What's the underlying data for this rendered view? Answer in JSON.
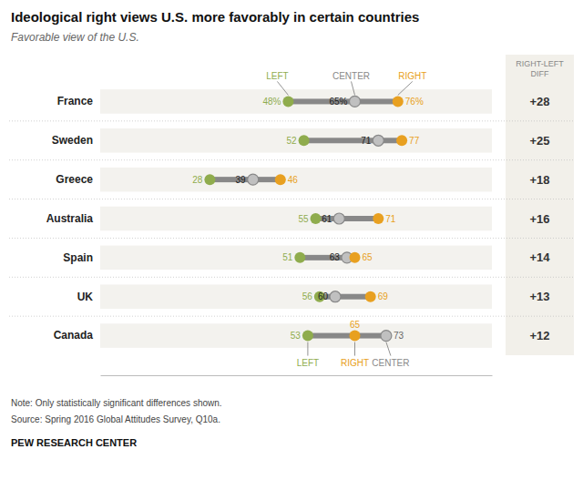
{
  "chart_data": {
    "type": "dot",
    "title": "Ideological right views U.S. more favorably in certain countries",
    "subtitle": "Favorable view of the U.S.",
    "categories": [
      "France",
      "Sweden",
      "Greece",
      "Australia",
      "Spain",
      "UK",
      "Canada"
    ],
    "series": [
      {
        "name": "LEFT",
        "color": "#8fac4d",
        "values": [
          48,
          52,
          28,
          55,
          51,
          56,
          53
        ],
        "value_labels": [
          "48%",
          "52",
          "28",
          "55",
          "51",
          "56",
          "53"
        ]
      },
      {
        "name": "CENTER",
        "color": "#c0c0c0",
        "values": [
          65,
          71,
          39,
          61,
          63,
          60,
          73
        ],
        "value_labels": [
          "65%",
          "71",
          "39",
          "61",
          "63",
          "60",
          "73"
        ]
      },
      {
        "name": "RIGHT",
        "color": "#e8a020",
        "values": [
          76,
          77,
          46,
          71,
          65,
          69,
          65
        ],
        "value_labels": [
          "76%",
          "77",
          "46",
          "71",
          "65",
          "69",
          "65"
        ]
      }
    ],
    "color": "#888888",
    "diff_title": [
      "RIGHT-LEFT",
      "DIFF"
    ],
    "diffs": [
      28,
      25,
      18,
      16,
      14,
      13,
      12
    ],
    "diff_labels": [
      "+28",
      "+25",
      "+18",
      "+16",
      "+14",
      "+13",
      "+12"
    ],
    "xlim": [
      0,
      100
    ],
    "xticks": [],
    "tick_labels": "y",
    "data_labels": true,
    "annotations": [
      "Note: Only statistically significant differences shown.",
      "Source: Spring 2016 Global Attitudes Survey, Q10a.",
      "PEW RESEARCH CENTER"
    ]
  }
}
